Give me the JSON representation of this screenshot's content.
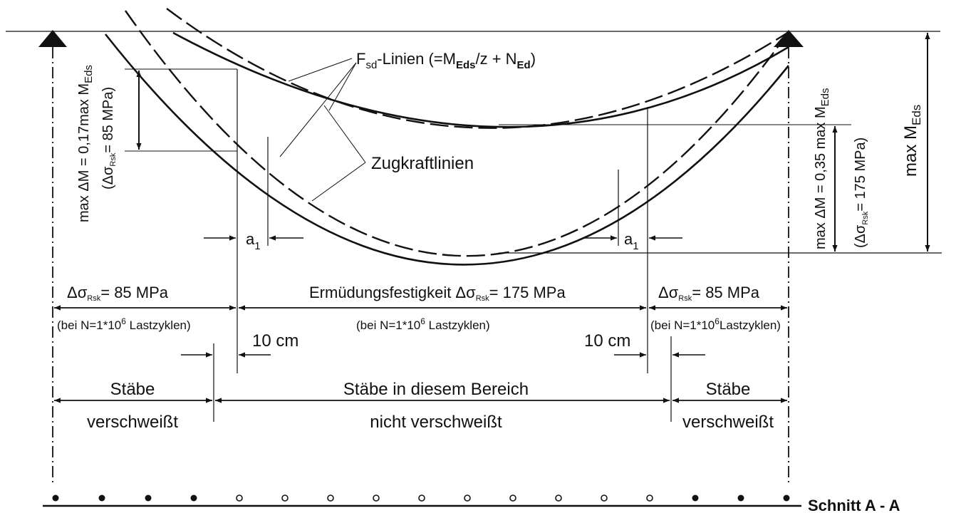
{
  "colors": {
    "line": "#111111",
    "background": "#ffffff"
  },
  "labels": {
    "fsd_head": "F",
    "fsd_sub": "sd",
    "fsd_tail": "-Linien (=M",
    "fsd_sub2": "Eds",
    "fsd_tail2": "/z + N",
    "fsd_sub3": "Ed",
    "fsd_close": ")",
    "zugkraft": "Zugkraftlinien",
    "a1": "a",
    "a1_sub": "1",
    "ten_cm": "10 cm",
    "delta_sigma": "Δσ",
    "rsk": "Rsk",
    "mpa_85": "= 85 MPa",
    "ermuedung_prefix": "Ermüdungsfestigkeit Δσ",
    "mpa_175": "= 175 MPa",
    "bei_n_prefix": "(bei N=1*10",
    "bei_n_exp": "6",
    "bei_n_suffix": " Lastzyklen)",
    "bei_n_suffix_right": "Lastzyklen)",
    "staebe": "Stäbe",
    "verschweisst": "verschweißt",
    "staebe_bereich": "Stäbe in diesem Bereich",
    "nicht_verschweisst": "nicht verschweißt",
    "schnitt": "Schnitt A - A",
    "left_rot_main": "max ΔM = 0,17max M",
    "left_rot_sub": "Eds",
    "left_rot2_open": "(Δσ",
    "left_rot2_sub": "Rsk",
    "left_rot2_tail": "= 85 MPa)",
    "right_rot_main": "max ΔM = 0,35 max M",
    "right_rot_sub": "Eds",
    "right_rot2_open": "(Δσ",
    "right_rot2_sub": "Rsk",
    "right_rot2_tail": "= 175 MPa)",
    "max_meds": "max M",
    "max_meds_sub": "Eds"
  }
}
